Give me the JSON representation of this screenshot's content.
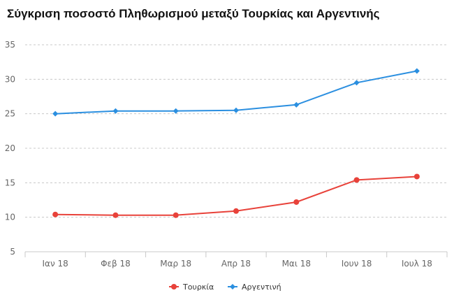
{
  "chart_data": {
    "type": "line",
    "title": "Σύγκριση ποσοστό Πληθωρισμού μεταξύ Τουρκίας και Αργεντινής",
    "xlabel": "",
    "ylabel": "",
    "categories": [
      "Ιαν 18",
      "Φεβ 18",
      "Μαρ 18",
      "Απρ 18",
      "Μαι 18",
      "Ιουν 18",
      "Ιουλ 18"
    ],
    "ylim": [
      5,
      35
    ],
    "yticks": [
      5,
      10,
      15,
      20,
      25,
      30,
      35
    ],
    "grid": true,
    "legend_position": "bottom",
    "series": [
      {
        "name": "Τουρκία",
        "color": "#e8423a",
        "marker": "circle",
        "values": [
          10.4,
          10.3,
          10.3,
          10.9,
          12.2,
          15.4,
          15.9
        ]
      },
      {
        "name": "Αργεντινή",
        "color": "#2b8fe0",
        "marker": "diamond",
        "values": [
          25.0,
          25.4,
          25.4,
          25.5,
          26.3,
          29.5,
          31.2
        ]
      }
    ]
  }
}
